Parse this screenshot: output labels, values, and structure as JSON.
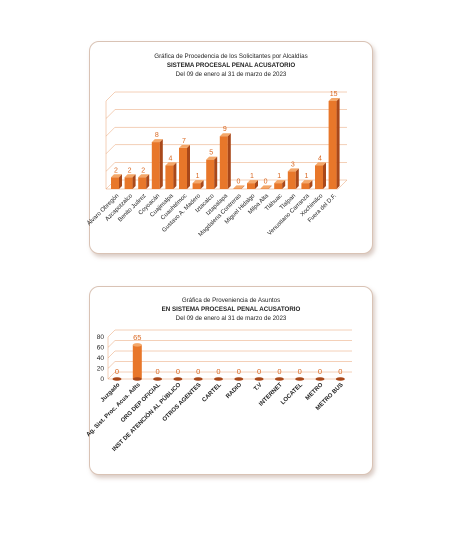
{
  "colors": {
    "bar": "#e8772a",
    "bar_dark": "#a9481a",
    "bar_top": "#f4a86a",
    "grid": "#e8a070",
    "label": "#d9661f"
  },
  "chart_data": [
    {
      "type": "bar",
      "title": "Gráfica de Procedencia de los Solicitantes por Alcaldías",
      "subtitle": "SISTEMA PROCESAL PENAL ACUSATORIO",
      "period": "Del  09  de enero  al  31 de  marzo  de  2023",
      "categories": [
        "Álvaro Obregón",
        "Azcapotzalco",
        "Benito Juárez",
        "Coyoacán",
        "Cuajimalpa",
        "Cuauhtémoc",
        "Gustavo A. Madero",
        "Iztacalco",
        "Iztapalapa",
        "Magdalena Contreras",
        "Miguel Hidalgo",
        "Milpa Alta",
        "Tláhuac",
        "Tlalpan",
        "Venustiano Carranza",
        "Xochimilco",
        "Fuera del D.F."
      ],
      "values": [
        2,
        2,
        2,
        8,
        4,
        7,
        1,
        5,
        9,
        0,
        1,
        0,
        1,
        3,
        1,
        4,
        15
      ],
      "ylim": [
        0,
        15
      ],
      "grid": true
    },
    {
      "type": "bar",
      "title": "Gráfica de Proveniencia de Asuntos",
      "subtitle": "EN SISTEMA PROCESAL PENAL ACUSATORIO",
      "period": "Del  09 de enero  al  31  de  marzo  de  2023",
      "categories": [
        "Juzgado",
        "Ag. Sist. Proc. Acus. Adts",
        "ORG DEP OFICIAL",
        "INST DE ATENCIÓN AL PÚBLICO",
        "OTROS AGENTES",
        "CARTEL",
        "RADIO",
        "T.V",
        "INTERNET",
        "LOCATEL",
        "METRO",
        "METRO BUS"
      ],
      "values": [
        0,
        65,
        0,
        0,
        0,
        0,
        0,
        0,
        0,
        0,
        0,
        0
      ],
      "ylim": [
        0,
        80
      ],
      "yticks": [
        "0",
        "20",
        "40",
        "60",
        "80"
      ],
      "grid": true
    }
  ]
}
